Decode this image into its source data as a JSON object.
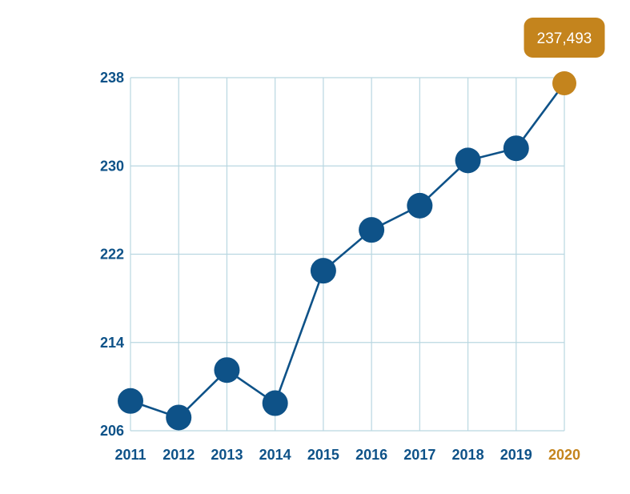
{
  "chart_data": {
    "type": "line",
    "title": "",
    "xlabel": "",
    "ylabel": "",
    "x": [
      "2011",
      "2012",
      "2013",
      "2014",
      "2015",
      "2016",
      "2017",
      "2018",
      "2019",
      "2020"
    ],
    "series": [
      {
        "values": [
          208.7,
          207.2,
          211.5,
          208.5,
          220.5,
          224.2,
          226.4,
          230.5,
          231.6,
          237.493
        ]
      }
    ],
    "y_ticks": [
      "206",
      "214",
      "222",
      "230",
      "238"
    ],
    "ylim": [
      206,
      238
    ],
    "grid": true,
    "highlight": {
      "index": 9,
      "label": "237,493"
    },
    "colors": {
      "series": "#0e5288",
      "highlight": "#c4841d",
      "grid": "#b9d7e1",
      "tick_text": "#0e5288",
      "callout_text": "#ffffff"
    }
  }
}
